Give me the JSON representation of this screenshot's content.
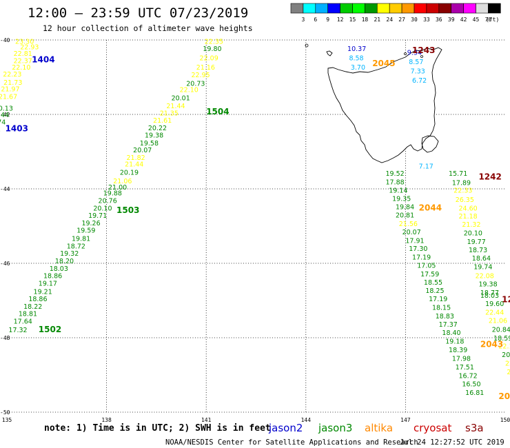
{
  "header": {
    "title": "12:00 — 23:59 UTC 07/23/2019",
    "subtitle": "12 hour collection of altimeter wave heights"
  },
  "colorbar": {
    "colors": [
      "#808080",
      "#00ffff",
      "#00b0ff",
      "#0000ff",
      "#00cc00",
      "#00ff00",
      "#009900",
      "#ffff00",
      "#ffcc00",
      "#ff9900",
      "#ff0000",
      "#cc0000",
      "#880000",
      "#aa00aa",
      "#ff00ff",
      "#dddddd",
      "#000000"
    ],
    "ticks": [
      "3",
      "6",
      "9",
      "12",
      "15",
      "18",
      "21",
      "24",
      "27",
      "30",
      "33",
      "36",
      "39",
      "42",
      "45",
      "70"
    ],
    "unit": "(ft)"
  },
  "map_axes": {
    "x_ticks": [
      {
        "value": 135,
        "label": "135"
      },
      {
        "value": 138,
        "label": "138"
      },
      {
        "value": 141,
        "label": "141"
      },
      {
        "value": 144,
        "label": "144"
      },
      {
        "value": 147,
        "label": "147"
      },
      {
        "value": 150,
        "label": "150"
      }
    ],
    "y_ticks": [
      {
        "value": -40,
        "label": "-40"
      },
      {
        "value": -42,
        "label": "-42"
      },
      {
        "value": -44,
        "label": "-44"
      },
      {
        "value": -46,
        "label": "-46"
      },
      {
        "value": -48,
        "label": "-48"
      },
      {
        "value": -50,
        "label": "-50"
      }
    ],
    "x_range": [
      135,
      150
    ],
    "y_range": [
      -50,
      -40
    ]
  },
  "satellite_colors": {
    "jason2": "#0000cc",
    "jason3": "#008800",
    "altika": "#ff8800",
    "cryosat": "#cc0000",
    "s3a": "#880000",
    "green": "#008800",
    "yellow": "#ffff00",
    "cyan": "#00b4ff",
    "orange": "#ff9900",
    "darkred": "#880000",
    "blue": "#0000cc"
  },
  "measurements": [
    {
      "lon": 135.25,
      "lat": -40.1,
      "value": "23.30",
      "color": "yellow"
    },
    {
      "lon": 135.4,
      "lat": -40.25,
      "value": "22.93",
      "color": "yellow"
    },
    {
      "lon": 135.2,
      "lat": -40.43,
      "value": "22.81",
      "color": "yellow"
    },
    {
      "lon": 135.2,
      "lat": -40.62,
      "value": "22.37",
      "color": "yellow"
    },
    {
      "lon": 135.15,
      "lat": -40.8,
      "value": "22.10",
      "color": "yellow"
    },
    {
      "lon": 134.88,
      "lat": -40.98,
      "value": "22.23",
      "color": "yellow"
    },
    {
      "lon": 134.9,
      "lat": -41.2,
      "value": "21.73",
      "color": "yellow"
    },
    {
      "lon": 134.82,
      "lat": -41.38,
      "value": "21.97",
      "color": "yellow"
    },
    {
      "lon": 134.75,
      "lat": -41.58,
      "value": "21.67",
      "color": "yellow"
    },
    {
      "lon": 134.62,
      "lat": -41.9,
      "value": "20.13",
      "color": "green"
    },
    {
      "lon": 134.5,
      "lat": -42.07,
      "value": "18.44",
      "color": "green"
    },
    {
      "lon": 134.4,
      "lat": -42.27,
      "value": "19.74",
      "color": "green"
    },
    {
      "lon": 134.25,
      "lat": -42.45,
      "value": "18.82",
      "color": "green"
    },
    {
      "lon": 140.95,
      "lat": -40.1,
      "value": "22.35",
      "color": "yellow"
    },
    {
      "lon": 140.9,
      "lat": -40.3,
      "value": "19.80",
      "color": "green"
    },
    {
      "lon": 140.8,
      "lat": -40.55,
      "value": "22.09",
      "color": "yellow"
    },
    {
      "lon": 140.7,
      "lat": -40.8,
      "value": "21.16",
      "color": "yellow"
    },
    {
      "lon": 140.55,
      "lat": -41.0,
      "value": "22.95",
      "color": "yellow"
    },
    {
      "lon": 140.4,
      "lat": -41.23,
      "value": "20.73",
      "color": "green"
    },
    {
      "lon": 140.2,
      "lat": -41.4,
      "value": "22.10",
      "color": "yellow"
    },
    {
      "lon": 139.95,
      "lat": -41.62,
      "value": "20.01",
      "color": "green"
    },
    {
      "lon": 139.8,
      "lat": -41.83,
      "value": "21.44",
      "color": "yellow"
    },
    {
      "lon": 139.6,
      "lat": -42.03,
      "value": "21.35",
      "color": "yellow"
    },
    {
      "lon": 139.4,
      "lat": -42.22,
      "value": "21.61",
      "color": "yellow"
    },
    {
      "lon": 139.25,
      "lat": -42.43,
      "value": "20.22",
      "color": "green"
    },
    {
      "lon": 139.15,
      "lat": -42.62,
      "value": "19.38",
      "color": "green"
    },
    {
      "lon": 139.0,
      "lat": -42.83,
      "value": "19.58",
      "color": "green"
    },
    {
      "lon": 138.8,
      "lat": -43.02,
      "value": "20.07",
      "color": "green"
    },
    {
      "lon": 138.6,
      "lat": -43.22,
      "value": "21.82",
      "color": "yellow"
    },
    {
      "lon": 138.55,
      "lat": -43.4,
      "value": "21.44",
      "color": "yellow"
    },
    {
      "lon": 138.4,
      "lat": -43.62,
      "value": "20.19",
      "color": "green"
    },
    {
      "lon": 138.2,
      "lat": -43.85,
      "value": "21.06",
      "color": "yellow"
    },
    {
      "lon": 138.05,
      "lat": -44.02,
      "value": "21.00",
      "color": "green"
    },
    {
      "lon": 137.9,
      "lat": -44.18,
      "value": "19.88",
      "color": "green"
    },
    {
      "lon": 137.75,
      "lat": -44.38,
      "value": "20.76",
      "color": "green"
    },
    {
      "lon": 137.6,
      "lat": -44.58,
      "value": "20.10",
      "color": "green"
    },
    {
      "lon": 137.45,
      "lat": -44.78,
      "value": "19.71",
      "color": "green"
    },
    {
      "lon": 137.25,
      "lat": -44.98,
      "value": "19.26",
      "color": "green"
    },
    {
      "lon": 137.1,
      "lat": -45.18,
      "value": "19.59",
      "color": "green"
    },
    {
      "lon": 136.95,
      "lat": -45.4,
      "value": "19.81",
      "color": "green"
    },
    {
      "lon": 136.8,
      "lat": -45.6,
      "value": "18.72",
      "color": "green"
    },
    {
      "lon": 136.6,
      "lat": -45.8,
      "value": "19.32",
      "color": "green"
    },
    {
      "lon": 136.45,
      "lat": -46.0,
      "value": "18.20",
      "color": "green"
    },
    {
      "lon": 136.28,
      "lat": -46.2,
      "value": "18.03",
      "color": "green"
    },
    {
      "lon": 136.1,
      "lat": -46.4,
      "value": "18.86",
      "color": "green"
    },
    {
      "lon": 135.95,
      "lat": -46.6,
      "value": "19.17",
      "color": "green"
    },
    {
      "lon": 135.8,
      "lat": -46.82,
      "value": "19.21",
      "color": "green"
    },
    {
      "lon": 135.65,
      "lat": -47.02,
      "value": "18.86",
      "color": "green"
    },
    {
      "lon": 135.5,
      "lat": -47.22,
      "value": "18.22",
      "color": "green"
    },
    {
      "lon": 135.35,
      "lat": -47.42,
      "value": "18.81",
      "color": "green"
    },
    {
      "lon": 135.2,
      "lat": -47.62,
      "value": "17.64",
      "color": "green"
    },
    {
      "lon": 135.05,
      "lat": -47.85,
      "value": "17.32",
      "color": "green"
    },
    {
      "lon": 145.25,
      "lat": -40.3,
      "value": "10.37",
      "color": "blue"
    },
    {
      "lon": 145.3,
      "lat": -40.55,
      "value": "8.58",
      "color": "cyan"
    },
    {
      "lon": 145.35,
      "lat": -40.8,
      "value": "3.70",
      "color": "cyan"
    },
    {
      "lon": 147.05,
      "lat": -40.4,
      "value": "9.34",
      "color": "blue"
    },
    {
      "lon": 147.1,
      "lat": -40.65,
      "value": "8.57",
      "color": "cyan"
    },
    {
      "lon": 147.15,
      "lat": -40.9,
      "value": "7.33",
      "color": "cyan"
    },
    {
      "lon": 147.2,
      "lat": -41.15,
      "value": "6.72",
      "color": "cyan"
    },
    {
      "lon": 147.4,
      "lat": -43.45,
      "value": "7.17",
      "color": "cyan"
    },
    {
      "lon": 146.4,
      "lat": -43.65,
      "value": "19.52",
      "color": "green"
    },
    {
      "lon": 146.4,
      "lat": -43.88,
      "value": "17.88",
      "color": "green"
    },
    {
      "lon": 146.5,
      "lat": -44.1,
      "value": "19.14",
      "color": "green"
    },
    {
      "lon": 146.6,
      "lat": -44.32,
      "value": "19.35",
      "color": "green"
    },
    {
      "lon": 146.7,
      "lat": -44.55,
      "value": "19.84",
      "color": "green"
    },
    {
      "lon": 146.7,
      "lat": -44.77,
      "value": "20.81",
      "color": "green"
    },
    {
      "lon": 146.8,
      "lat": -45.0,
      "value": "21.56",
      "color": "yellow"
    },
    {
      "lon": 146.9,
      "lat": -45.22,
      "value": "20.07",
      "color": "green"
    },
    {
      "lon": 147.0,
      "lat": -45.45,
      "value": "17.91",
      "color": "green"
    },
    {
      "lon": 147.1,
      "lat": -45.67,
      "value": "17.30",
      "color": "green"
    },
    {
      "lon": 147.2,
      "lat": -45.9,
      "value": "17.19",
      "color": "green"
    },
    {
      "lon": 147.35,
      "lat": -46.12,
      "value": "17.05",
      "color": "green"
    },
    {
      "lon": 147.45,
      "lat": -46.35,
      "value": "17.59",
      "color": "green"
    },
    {
      "lon": 147.55,
      "lat": -46.57,
      "value": "18.55",
      "color": "green"
    },
    {
      "lon": 147.6,
      "lat": -46.8,
      "value": "18.25",
      "color": "green"
    },
    {
      "lon": 147.7,
      "lat": -47.02,
      "value": "17.19",
      "color": "green"
    },
    {
      "lon": 147.8,
      "lat": -47.25,
      "value": "18.15",
      "color": "green"
    },
    {
      "lon": 147.9,
      "lat": -47.48,
      "value": "18.83",
      "color": "green"
    },
    {
      "lon": 148.0,
      "lat": -47.7,
      "value": "17.37",
      "color": "green"
    },
    {
      "lon": 148.1,
      "lat": -47.93,
      "value": "18.40",
      "color": "green"
    },
    {
      "lon": 148.2,
      "lat": -48.16,
      "value": "19.18",
      "color": "green"
    },
    {
      "lon": 148.3,
      "lat": -48.39,
      "value": "18.39",
      "color": "green"
    },
    {
      "lon": 148.4,
      "lat": -48.62,
      "value": "17.98",
      "color": "green"
    },
    {
      "lon": 148.5,
      "lat": -48.85,
      "value": "17.51",
      "color": "green"
    },
    {
      "lon": 148.6,
      "lat": -49.08,
      "value": "16.72",
      "color": "green"
    },
    {
      "lon": 148.7,
      "lat": -49.31,
      "value": "16.50",
      "color": "green"
    },
    {
      "lon": 148.8,
      "lat": -49.54,
      "value": "16.81",
      "color": "green"
    },
    {
      "lon": 148.3,
      "lat": -43.65,
      "value": "15.71",
      "color": "green"
    },
    {
      "lon": 148.4,
      "lat": -43.9,
      "value": "17.89",
      "color": "green"
    },
    {
      "lon": 148.45,
      "lat": -44.1,
      "value": "22.33",
      "color": "yellow"
    },
    {
      "lon": 148.5,
      "lat": -44.35,
      "value": "26.35",
      "color": "yellow"
    },
    {
      "lon": 148.6,
      "lat": -44.58,
      "value": "24.60",
      "color": "yellow"
    },
    {
      "lon": 148.6,
      "lat": -44.8,
      "value": "21.18",
      "color": "yellow"
    },
    {
      "lon": 148.7,
      "lat": -45.02,
      "value": "21.32",
      "color": "yellow"
    },
    {
      "lon": 148.75,
      "lat": -45.25,
      "value": "20.10",
      "color": "green"
    },
    {
      "lon": 148.85,
      "lat": -45.48,
      "value": "19.77",
      "color": "green"
    },
    {
      "lon": 148.9,
      "lat": -45.7,
      "value": "18.73",
      "color": "green"
    },
    {
      "lon": 149.0,
      "lat": -45.93,
      "value": "18.64",
      "color": "green"
    },
    {
      "lon": 149.05,
      "lat": -46.16,
      "value": "19.74",
      "color": "green"
    },
    {
      "lon": 149.1,
      "lat": -46.4,
      "value": "22.08",
      "color": "yellow"
    },
    {
      "lon": 149.2,
      "lat": -46.62,
      "value": "19.38",
      "color": "green"
    },
    {
      "lon": 149.25,
      "lat": -46.85,
      "value": "18.77",
      "color": "green"
    },
    {
      "lon": 149.25,
      "lat": -46.93,
      "value": "18.03",
      "color": "green"
    },
    {
      "lon": 149.4,
      "lat": -47.15,
      "value": "19.60",
      "color": "green"
    },
    {
      "lon": 149.4,
      "lat": -47.38,
      "value": "22.44",
      "color": "yellow"
    },
    {
      "lon": 149.5,
      "lat": -47.6,
      "value": "21.06",
      "color": "yellow"
    },
    {
      "lon": 149.6,
      "lat": -47.84,
      "value": "20.84",
      "color": "green"
    },
    {
      "lon": 149.65,
      "lat": -48.07,
      "value": "18.59",
      "color": "green"
    },
    {
      "lon": 149.8,
      "lat": -48.29,
      "value": "22.15",
      "color": "yellow"
    },
    {
      "lon": 149.9,
      "lat": -48.52,
      "value": "20.84",
      "color": "green"
    },
    {
      "lon": 150.0,
      "lat": -48.75,
      "value": "22.40",
      "color": "yellow"
    },
    {
      "lon": 150.05,
      "lat": -48.98,
      "value": "23.5",
      "color": "yellow"
    },
    {
      "lon": 150.2,
      "lat": -49.2,
      "value": "20.",
      "color": "green"
    },
    {
      "lon": 150.3,
      "lat": -49.43,
      "value": "17",
      "color": "green"
    },
    {
      "lon": 150.4,
      "lat": -49.65,
      "value": "1!",
      "color": "yellow"
    }
  ],
  "pass_labels": [
    {
      "lon": 135.75,
      "lat": -40.6,
      "text": "1404",
      "color": "blue"
    },
    {
      "lon": 134.95,
      "lat": -42.45,
      "text": "1403",
      "color": "blue"
    },
    {
      "lon": 141.0,
      "lat": -42.0,
      "text": "1504",
      "color": "green"
    },
    {
      "lon": 138.3,
      "lat": -44.65,
      "text": "1503",
      "color": "green"
    },
    {
      "lon": 135.95,
      "lat": -47.85,
      "text": "1502",
      "color": "green"
    },
    {
      "lon": 147.2,
      "lat": -40.35,
      "text": "1243",
      "color": "darkred"
    },
    {
      "lon": 146.0,
      "lat": -40.7,
      "text": "2045",
      "color": "orange"
    },
    {
      "lon": 149.2,
      "lat": -43.75,
      "text": "1242",
      "color": "darkred"
    },
    {
      "lon": 147.4,
      "lat": -44.58,
      "text": "2044",
      "color": "orange"
    },
    {
      "lon": 149.9,
      "lat": -47.05,
      "text": "124",
      "color": "darkred"
    },
    {
      "lon": 149.25,
      "lat": -48.25,
      "text": "2043",
      "color": "orange"
    },
    {
      "lon": 149.8,
      "lat": -49.65,
      "text": "204",
      "color": "orange"
    }
  ],
  "note": "note: 1) Time is in UTC; 2) SWH is in feet",
  "legend": [
    {
      "name": "jason2",
      "color": "jason2"
    },
    {
      "name": "jason3",
      "color": "jason3"
    },
    {
      "name": "altika",
      "color": "altika"
    },
    {
      "name": "cryosat",
      "color": "cryosat"
    },
    {
      "name": "s3a",
      "color": "s3a"
    }
  ],
  "footer": {
    "credit": "NOAA/NESDIS Center for Satellite Applications and Research",
    "timestamp": "Jul 24 12:27:52 UTC 2019"
  }
}
